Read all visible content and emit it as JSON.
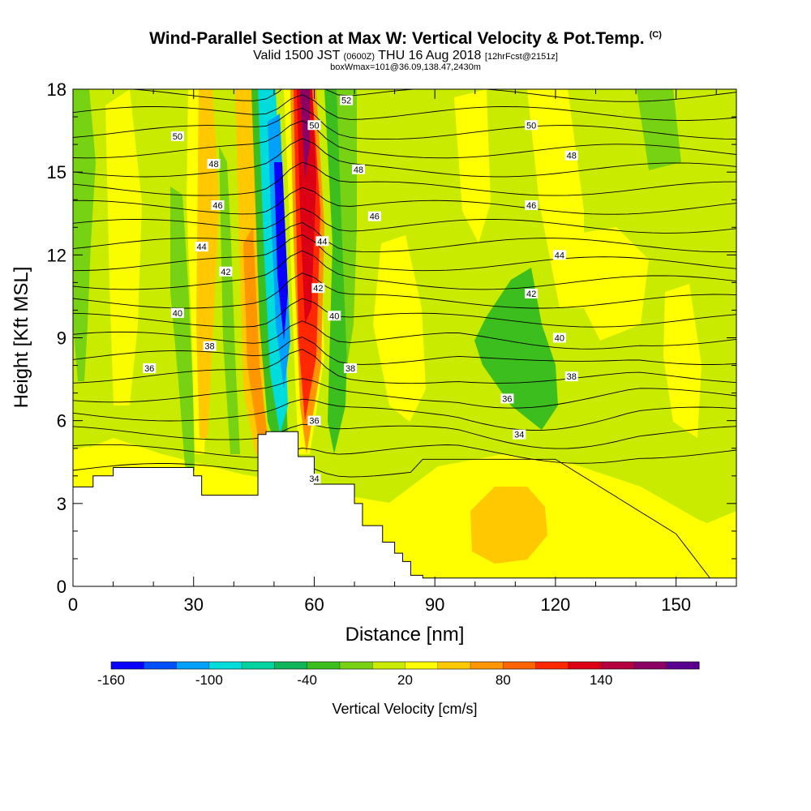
{
  "title": {
    "main": "Wind-Parallel Section at Max W: Vertical Velocity & Pot.Temp.",
    "units": "(C)",
    "valid_prefix": "Valid 1500 JST",
    "valid_utc": "(0600Z)",
    "valid_date": "THU 16 Aug 2018",
    "forecast": "[12hrFcst@2151z]",
    "box_info": "boxWmax=101@36.09,138.47,2430m"
  },
  "chart_data": {
    "type": "heatmap",
    "xlabel": "Distance [nm]",
    "ylabel": "Height [Kft MSL]",
    "xlim": [
      0,
      165
    ],
    "ylim": [
      0,
      18
    ],
    "x_ticks": [
      "0",
      "30",
      "60",
      "90",
      "120",
      "150"
    ],
    "y_ticks": [
      "0",
      "3",
      "6",
      "9",
      "12",
      "15",
      "18"
    ],
    "colorbar": {
      "title": "Vertical Velocity [cm/s]",
      "tick_labels": [
        "-160",
        "-100",
        "-40",
        "20",
        "80",
        "140"
      ],
      "tick_values": [
        -160,
        -100,
        -40,
        20,
        80,
        140
      ],
      "bins_min": -160,
      "bins_step": 20,
      "colors": [
        "#0a00ff",
        "#0050ff",
        "#00a0ff",
        "#00dcdc",
        "#00d2a0",
        "#12b45a",
        "#3cbe1e",
        "#78d214",
        "#c8eb00",
        "#ffff00",
        "#ffc800",
        "#ff9600",
        "#ff6400",
        "#ff2800",
        "#dc0014",
        "#b4003c",
        "#8c0064",
        "#5a0090"
      ]
    },
    "terrain_profile": [
      [
        0,
        3.6
      ],
      [
        5,
        4.0
      ],
      [
        10,
        4.3
      ],
      [
        20,
        4.3
      ],
      [
        27,
        4.3
      ],
      [
        30,
        4.0
      ],
      [
        32,
        3.3
      ],
      [
        42,
        3.3
      ],
      [
        46,
        5.5
      ],
      [
        48,
        5.6
      ],
      [
        55,
        5.6
      ],
      [
        56,
        4.7
      ],
      [
        60,
        3.7
      ],
      [
        67,
        3.7
      ],
      [
        70,
        3.0
      ],
      [
        72,
        2.2
      ],
      [
        77,
        1.6
      ],
      [
        80,
        1.2
      ],
      [
        82,
        0.9
      ],
      [
        84,
        0.4
      ],
      [
        87,
        0.3
      ],
      [
        165,
        0.3
      ]
    ],
    "pot_temp_contour_labels": [
      {
        "x": 26,
        "y": 16.3,
        "text": "50"
      },
      {
        "x": 35,
        "y": 15.3,
        "text": "48"
      },
      {
        "x": 36,
        "y": 13.8,
        "text": "46"
      },
      {
        "x": 32,
        "y": 12.3,
        "text": "44"
      },
      {
        "x": 38,
        "y": 11.4,
        "text": "42"
      },
      {
        "x": 26,
        "y": 9.9,
        "text": "40"
      },
      {
        "x": 34,
        "y": 8.7,
        "text": "38"
      },
      {
        "x": 19,
        "y": 7.9,
        "text": "36"
      },
      {
        "x": 68,
        "y": 17.6,
        "text": "52"
      },
      {
        "x": 60,
        "y": 16.7,
        "text": "50"
      },
      {
        "x": 71,
        "y": 15.1,
        "text": "48"
      },
      {
        "x": 75,
        "y": 13.4,
        "text": "46"
      },
      {
        "x": 62,
        "y": 12.5,
        "text": "44"
      },
      {
        "x": 61,
        "y": 10.8,
        "text": "42"
      },
      {
        "x": 65,
        "y": 9.8,
        "text": "40"
      },
      {
        "x": 69,
        "y": 7.9,
        "text": "38"
      },
      {
        "x": 60,
        "y": 6.0,
        "text": "36"
      },
      {
        "x": 60,
        "y": 3.9,
        "text": "34"
      },
      {
        "x": 114,
        "y": 16.7,
        "text": "50"
      },
      {
        "x": 124,
        "y": 15.6,
        "text": "48"
      },
      {
        "x": 114,
        "y": 13.8,
        "text": "46"
      },
      {
        "x": 121,
        "y": 12.0,
        "text": "44"
      },
      {
        "x": 114,
        "y": 10.6,
        "text": "42"
      },
      {
        "x": 121,
        "y": 9.0,
        "text": "40"
      },
      {
        "x": 124,
        "y": 7.6,
        "text": "38"
      },
      {
        "x": 108,
        "y": 6.8,
        "text": "36"
      },
      {
        "x": 111,
        "y": 5.5,
        "text": "34"
      }
    ]
  }
}
